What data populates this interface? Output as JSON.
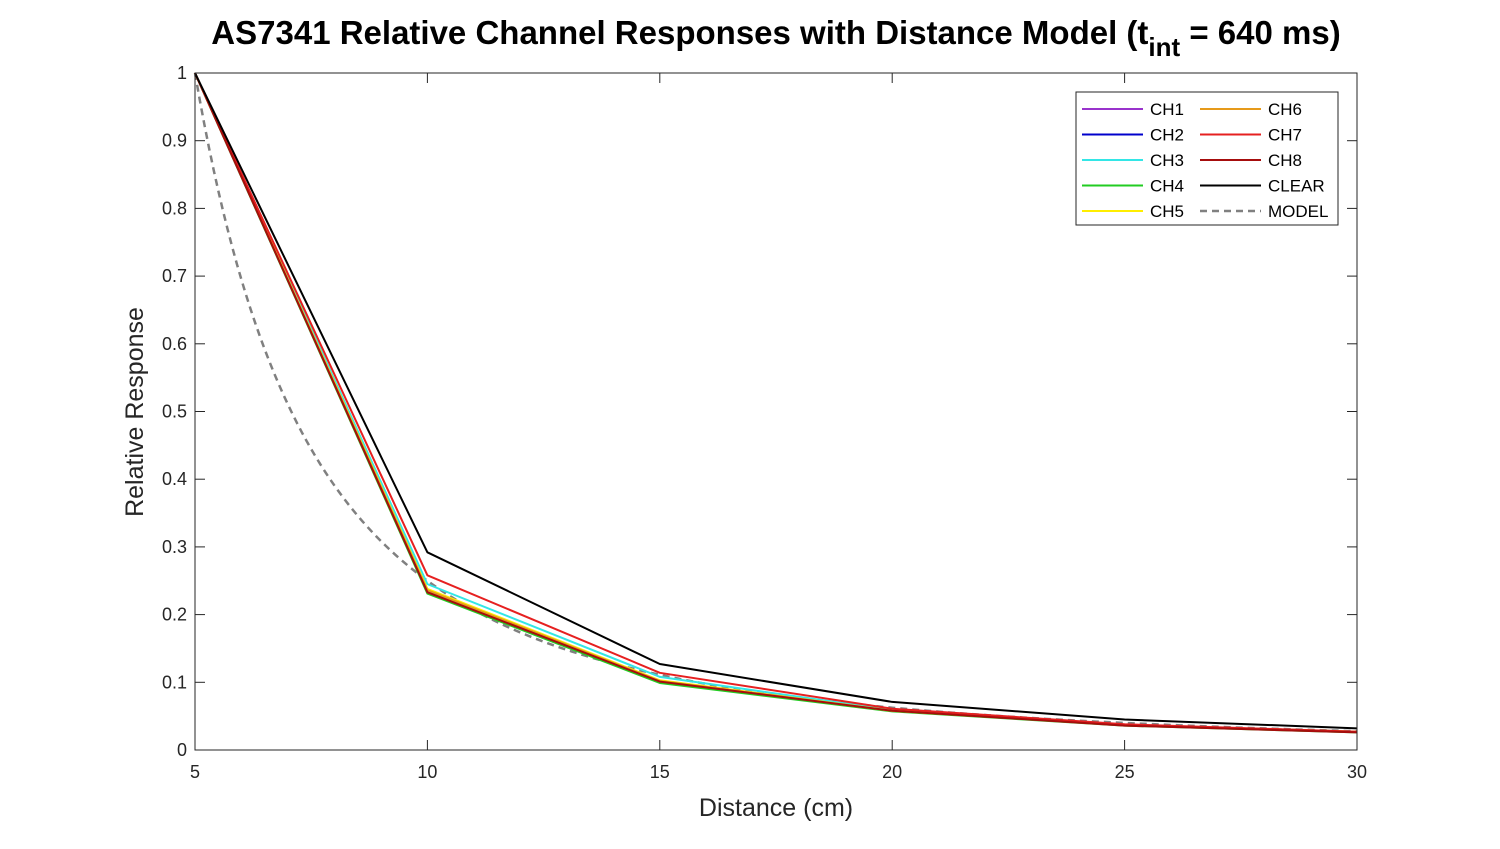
{
  "chart_data": {
    "type": "line",
    "title": {
      "main": "AS7341 Relative Channel Responses with Distance Model (t",
      "subscript": "int",
      "tail": " = 640 ms)"
    },
    "xlabel": "Distance (cm)",
    "ylabel": "Relative Response",
    "xlim": [
      5,
      30
    ],
    "ylim": [
      0,
      1
    ],
    "xticks": [
      "5",
      "10",
      "15",
      "20",
      "25",
      "30"
    ],
    "yticks": [
      "0",
      "0.1",
      "0.2",
      "0.3",
      "0.4",
      "0.5",
      "0.6",
      "0.7",
      "0.8",
      "0.9",
      "1"
    ],
    "grid": false,
    "legend_position": "top-right",
    "legend_columns": 2,
    "x": [
      5,
      10,
      15,
      20,
      25,
      30
    ],
    "series": [
      {
        "name": "CH1",
        "color": "#9933cc",
        "dash": "solid",
        "values": [
          1,
          0.233,
          0.101,
          0.058,
          0.037,
          0.027
        ]
      },
      {
        "name": "CH2",
        "color": "#0000cc",
        "dash": "solid",
        "values": [
          1,
          0.234,
          0.101,
          0.058,
          0.037,
          0.027
        ]
      },
      {
        "name": "CH3",
        "color": "#33e6e6",
        "dash": "solid",
        "values": [
          1,
          0.245,
          0.108,
          0.059,
          0.037,
          0.027
        ]
      },
      {
        "name": "CH4",
        "color": "#22cc22",
        "dash": "solid",
        "values": [
          1,
          0.231,
          0.099,
          0.057,
          0.036,
          0.026
        ]
      },
      {
        "name": "CH5",
        "color": "#ffee00",
        "dash": "solid",
        "values": [
          1,
          0.238,
          0.103,
          0.058,
          0.037,
          0.027
        ]
      },
      {
        "name": "CH6",
        "color": "#e69a1a",
        "dash": "solid",
        "values": [
          1,
          0.236,
          0.102,
          0.058,
          0.037,
          0.027
        ]
      },
      {
        "name": "CH7",
        "color": "#e62020",
        "dash": "solid",
        "values": [
          1,
          0.258,
          0.114,
          0.061,
          0.038,
          0.027
        ]
      },
      {
        "name": "CH8",
        "color": "#a60d0d",
        "dash": "solid",
        "values": [
          1,
          0.233,
          0.101,
          0.058,
          0.036,
          0.026
        ]
      },
      {
        "name": "CLEAR",
        "color": "#000000",
        "dash": "solid",
        "values": [
          1,
          0.292,
          0.127,
          0.071,
          0.045,
          0.032
        ]
      },
      {
        "name": "MODEL",
        "color": "#808080",
        "dash": "dashed",
        "model": "inverse-square",
        "values": [
          1,
          0.25,
          0.111,
          0.0625,
          0.04,
          0.0278
        ]
      }
    ]
  }
}
